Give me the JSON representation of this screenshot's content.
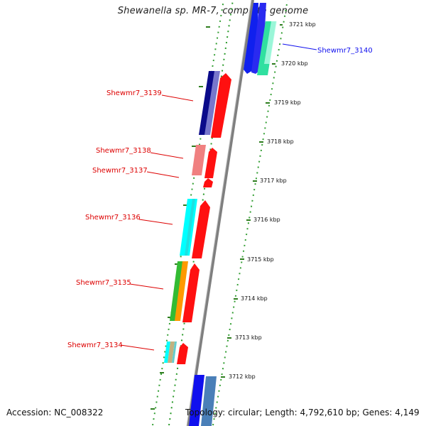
{
  "title": "Shewanella sp. MR-7, complete genome",
  "accession": "Accession: NC_008322",
  "topology": "Topology: circular; Length: 4,792,610 bp; Genes: 4,149",
  "ticks": [
    "3721 kbp",
    "3720 kbp",
    "3719 kbp",
    "3718 kbp",
    "3717 kbp",
    "3716 kbp",
    "3715 kbp",
    "3714 kbp",
    "3713 kbp",
    "3712 kbp"
  ],
  "genes": [
    {
      "label": "Shewmr7_3140",
      "color": "#1010ee"
    },
    {
      "label": "Shewmr7_3139",
      "color": "#dd0000"
    },
    {
      "label": "Shewmr7_3138",
      "color": "#dd0000"
    },
    {
      "label": "Shewmr7_3137",
      "color": "#dd0000"
    },
    {
      "label": "Shewmr7_3136",
      "color": "#dd0000"
    },
    {
      "label": "Shewmr7_3135",
      "color": "#dd0000"
    },
    {
      "label": "Shewmr7_3134",
      "color": "#dd0000"
    }
  ],
  "colors": {
    "backbone": "#888888",
    "dotted_guide": "#228b22",
    "tick_mark": "#2e7d1e",
    "forward_strand": "#ff0000",
    "reverse_strand": "#0000ff"
  }
}
